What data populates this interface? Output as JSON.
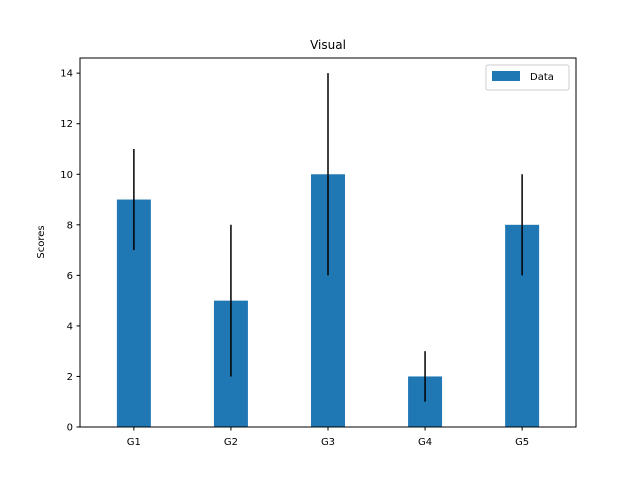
{
  "chart_data": {
    "type": "bar",
    "title": "Visual",
    "xlabel": "",
    "ylabel": "Scores",
    "categories": [
      "G1",
      "G2",
      "G3",
      "G4",
      "G5"
    ],
    "series": [
      {
        "name": "Data",
        "values": [
          9,
          5,
          10,
          2,
          8
        ],
        "errors": [
          2,
          3,
          4,
          1,
          2
        ],
        "color": "#1f77b4"
      }
    ],
    "ylim": [
      0,
      14.6
    ],
    "yticks": [
      0,
      2,
      4,
      6,
      8,
      10,
      12,
      14
    ],
    "error_color": "#000000",
    "grid": false,
    "legend_position": "top-right"
  }
}
